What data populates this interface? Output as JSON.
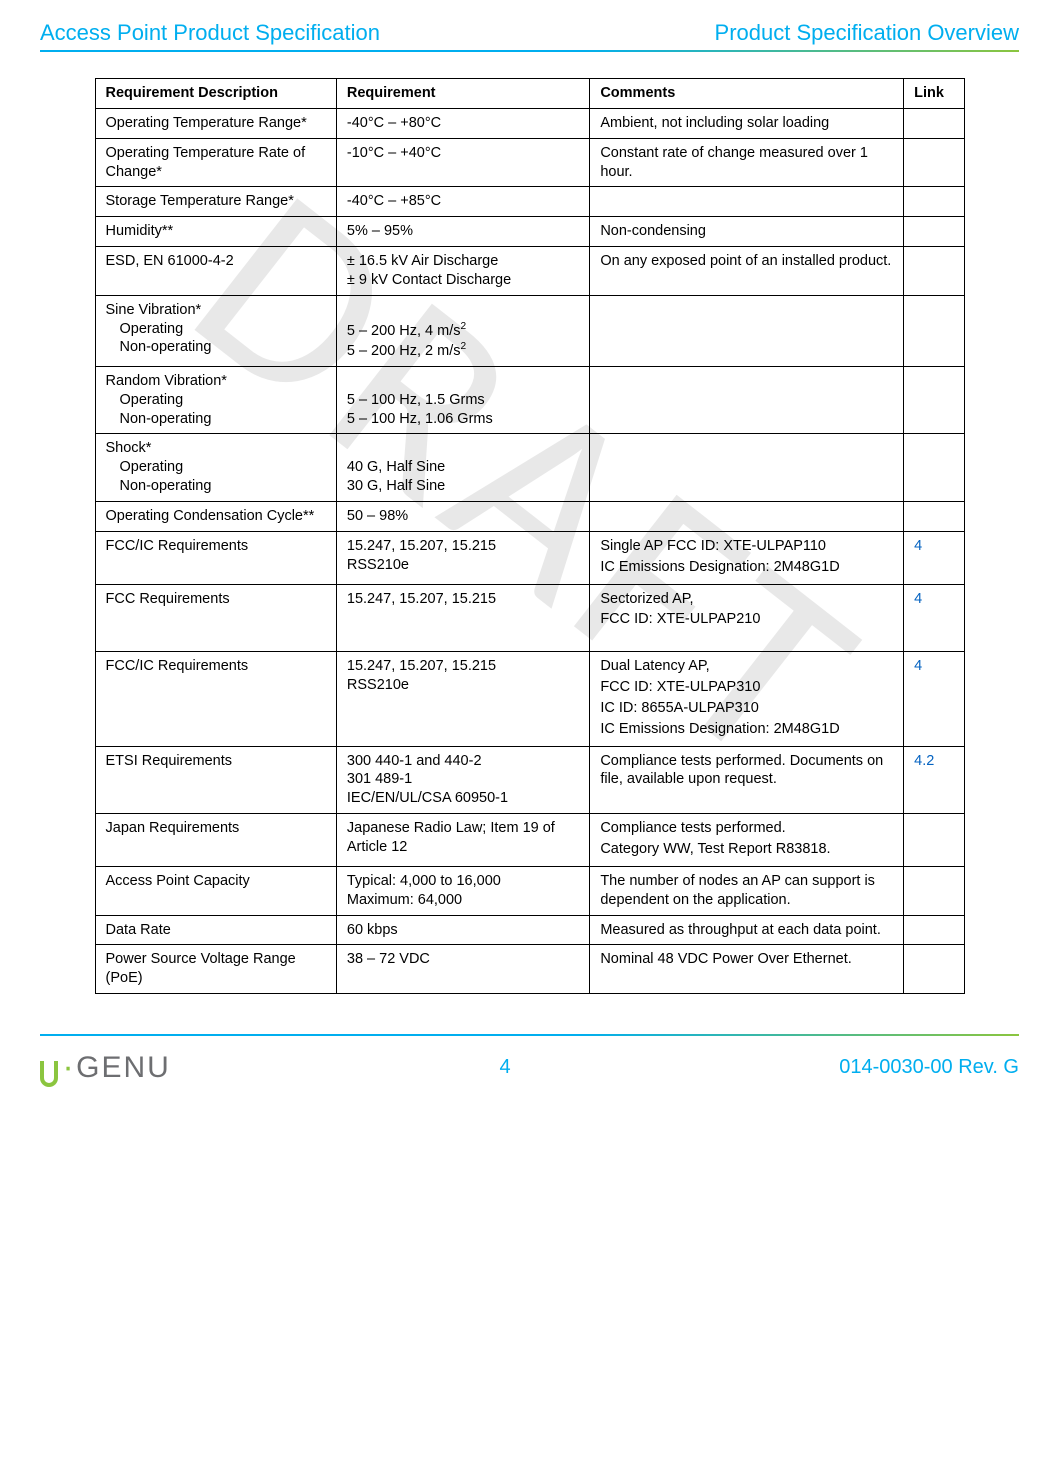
{
  "header": {
    "left": "Access Point Product Specification",
    "right": "Product Specification Overview"
  },
  "watermark": "DRAFT",
  "table": {
    "columns": [
      "Requirement Description",
      "Requirement",
      "Comments",
      "Link"
    ],
    "rows": [
      {
        "desc": "Operating Temperature Range*",
        "req": "-40°C  – +80°C",
        "comm": "Ambient, not including solar loading",
        "link": ""
      },
      {
        "desc": "Operating Temperature Rate of Change*",
        "req": "-10°C  – +40°C",
        "comm": "Constant rate of change measured over 1 hour.",
        "link": ""
      },
      {
        "desc": "Storage Temperature Range*",
        "req": "-40°C  – +85°C",
        "comm": "",
        "link": ""
      },
      {
        "desc": "Humidity**",
        "req": "5% – 95%",
        "comm": "Non-condensing",
        "link": ""
      },
      {
        "desc": "ESD, EN 61000-4-2",
        "req_lines": [
          "± 16.5 kV Air Discharge",
          "± 9 kV Contact Discharge"
        ],
        "comm": "On any exposed point of an installed product.",
        "link": ""
      },
      {
        "desc_main": "Sine Vibration*",
        "desc_sub": [
          "Operating",
          "Non-operating"
        ],
        "req_lines_html": [
          "",
          "5 – 200 Hz, 4 m/s<sup>2</sup>",
          "5 – 200 Hz, 2 m/s<sup>2</sup>"
        ],
        "comm": "",
        "link": ""
      },
      {
        "desc_main": "Random Vibration*",
        "desc_sub": [
          "Operating",
          "Non-operating"
        ],
        "req_lines": [
          "",
          "5 – 100 Hz, 1.5 Grms",
          "5 – 100 Hz, 1.06 Grms"
        ],
        "comm": "",
        "link": ""
      },
      {
        "desc_main": "Shock*",
        "desc_sub": [
          "Operating",
          "Non-operating"
        ],
        "req_lines": [
          "",
          "40 G, Half Sine",
          "30 G, Half Sine"
        ],
        "comm": "",
        "link": ""
      },
      {
        "desc": "Operating Condensation Cycle**",
        "req": "50 – 98%",
        "comm": "",
        "link": ""
      },
      {
        "desc": "FCC/IC Requirements",
        "req_lines": [
          "15.247, 15.207, 15.215",
          "RSS210e"
        ],
        "comm_lines": [
          "Single AP FCC ID: XTE-ULPAP110",
          "IC Emissions Designation: 2M48G1D"
        ],
        "link": "4"
      },
      {
        "desc": "FCC Requirements",
        "req": "15.247, 15.207, 15.215",
        "comm_lines": [
          "Sectorized AP,",
          "FCC ID: XTE-ULPAP210"
        ],
        "link": "4",
        "pad_bottom": true
      },
      {
        "desc": "FCC/IC Requirements",
        "req_lines": [
          "15.247, 15.207, 15.215",
          "RSS210e"
        ],
        "comm_lines": [
          "Dual Latency AP,",
          "FCC ID: XTE-ULPAP310",
          "IC ID: 8655A-ULPAP310",
          "IC Emissions Designation: 2M48G1D"
        ],
        "link": "4"
      },
      {
        "desc": "ETSI Requirements",
        "req_lines": [
          "300 440-1 and 440-2",
          "301 489-1",
          "IEC/EN/UL/CSA 60950-1"
        ],
        "comm": "Compliance tests performed. Documents on file, available upon request.",
        "link": "4.2"
      },
      {
        "desc": "Japan Requirements",
        "req": "Japanese Radio Law; Item 19 of Article 12",
        "comm_lines": [
          "Compliance tests performed.",
          "Category WW, Test Report R83818."
        ],
        "link": ""
      },
      {
        "desc": "Access Point Capacity",
        "req_lines": [
          "Typical: 4,000 to 16,000",
          "Maximum: 64,000"
        ],
        "req_tight": true,
        "comm": "The number of nodes an AP can support is dependent on the application.",
        "link": ""
      },
      {
        "desc": "Data Rate",
        "req": "60 kbps",
        "comm": "Measured as throughput at each data point.",
        "link": ""
      },
      {
        "desc": "Power Source Voltage Range (PoE)",
        "req": "38 – 72 VDC",
        "comm": "Nominal 48 VDC Power Over Ethernet.",
        "link": ""
      }
    ]
  },
  "footer": {
    "logo_text": "GENU",
    "page": "4",
    "rev": "014-0030-00 Rev. G"
  },
  "colors": {
    "brand_blue": "#00aeef",
    "brand_green": "#8bc53f",
    "link": "#0563c1",
    "text_gray": "#6d6e71"
  }
}
